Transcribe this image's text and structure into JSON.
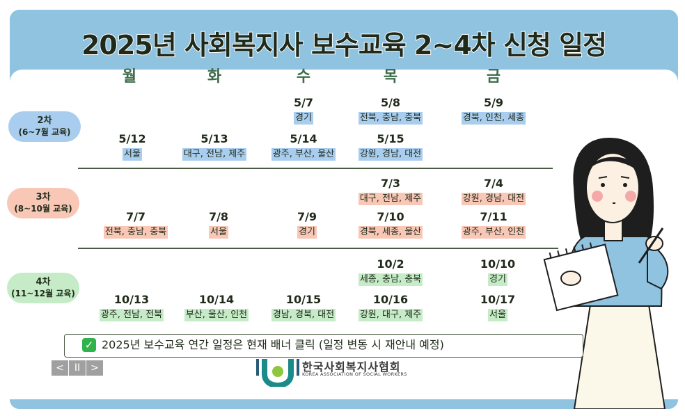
{
  "title": "2025년 사회복지사 보수교육 2~4차 신청 일정",
  "days": [
    "월",
    "화",
    "수",
    "목",
    "금"
  ],
  "rows": [
    {
      "label_line1": "2차",
      "label_line2": "(6~7월 교육)",
      "color": "#a9cdee",
      "week1": {
        "wed": {
          "date": "5/7",
          "regions": "경기"
        },
        "thu": {
          "date": "5/8",
          "regions": "전북, 충남, 충북"
        },
        "fri": {
          "date": "5/9",
          "regions": "경북, 인천, 세종"
        }
      },
      "week2": {
        "mon": {
          "date": "5/12",
          "regions": "서울"
        },
        "tue": {
          "date": "5/13",
          "regions": "대구, 전남, 제주"
        },
        "wed": {
          "date": "5/14",
          "regions": "광주, 부산, 울산"
        },
        "thu": {
          "date": "5/15",
          "regions": "강원, 경남, 대전"
        }
      }
    },
    {
      "label_line1": "3차",
      "label_line2": "(8~10월 교육)",
      "color": "#f8c7b6",
      "week1": {
        "thu": {
          "date": "7/3",
          "regions": "대구, 전남, 제주"
        },
        "fri": {
          "date": "7/4",
          "regions": "강원, 경남, 대전"
        }
      },
      "week2": {
        "mon": {
          "date": "7/7",
          "regions": "전북, 충남, 충북"
        },
        "tue": {
          "date": "7/8",
          "regions": "서울"
        },
        "wed": {
          "date": "7/9",
          "regions": "경기"
        },
        "thu": {
          "date": "7/10",
          "regions": "경북, 세종, 울산"
        },
        "fri": {
          "date": "7/11",
          "regions": "광주, 부산, 인천"
        }
      }
    },
    {
      "label_line1": "4차",
      "label_line2": "(11~12월 교육)",
      "color": "#c5ecc7",
      "week1": {
        "thu": {
          "date": "10/2",
          "regions": "세종, 충남, 충북"
        },
        "fri": {
          "date": "10/10",
          "regions": "경기"
        }
      },
      "week2": {
        "mon": {
          "date": "10/13",
          "regions": "광주, 전남, 전북"
        },
        "tue": {
          "date": "10/14",
          "regions": "부산, 울산, 인천"
        },
        "wed": {
          "date": "10/15",
          "regions": "경남, 경북, 대전"
        },
        "thu": {
          "date": "10/16",
          "regions": "강원, 대구, 제주"
        },
        "fri": {
          "date": "10/17",
          "regions": "서울"
        }
      }
    }
  ],
  "notice": "2025년 보수교육 연간 일정은 현재 배너 클릭 (일정 변동 시 재안내 예정)",
  "controls": {
    "prev": "<",
    "pause": "II",
    "next": ">"
  },
  "logo": {
    "ko": "한국사회복지사협회",
    "en": "KOREA ASSOCIATION OF SOCIAL WORKERS"
  },
  "colors": {
    "frame": "#8fc3e0",
    "title": "#1f2a1a",
    "day_header": "#3d6b4a",
    "check": "#2fb34a"
  }
}
